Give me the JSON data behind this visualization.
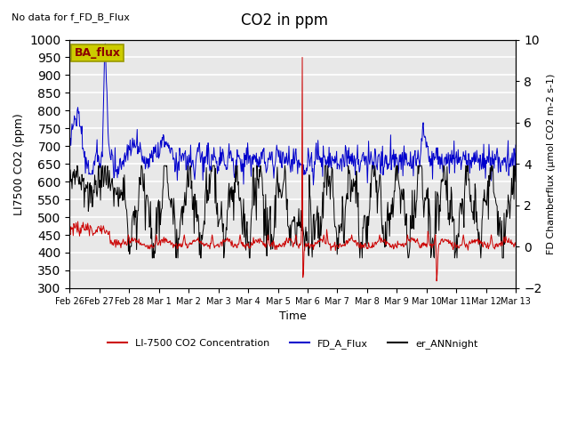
{
  "title": "CO2 in ppm",
  "top_left_text": "No data for f_FD_B_Flux",
  "annotation_box": "BA_flux",
  "ylabel_left": "LI7500 CO2 (ppm)",
  "ylabel_right": "FD Chamberflux (μmol CO2 m-2 s-1)",
  "xlabel": "Time",
  "ylim_left": [
    300,
    1000
  ],
  "ylim_right": [
    -2,
    10
  ],
  "yticks_left": [
    300,
    350,
    400,
    450,
    500,
    550,
    600,
    650,
    700,
    750,
    800,
    850,
    900,
    950,
    1000
  ],
  "yticks_right": [
    -2,
    0,
    2,
    4,
    6,
    8,
    10
  ],
  "xtick_labels": [
    "Feb 26",
    "Feb 27",
    "Feb 28",
    "Mar 1",
    "Mar 2",
    "Mar 3",
    "Mar 4",
    "Mar 5",
    "Mar 6",
    "Mar 7",
    "Mar 8",
    "Mar 9",
    "Mar 10",
    "Mar 11",
    "Mar 12",
    "Mar 13"
  ],
  "legend_entries": [
    "LI-7500 CO2 Concentration",
    "FD_A_Flux",
    "er_ANNnight"
  ],
  "legend_colors": [
    "#cc0000",
    "#0000cc",
    "#000000"
  ],
  "line_colors": {
    "red": "#cc0000",
    "blue": "#0000cc",
    "black": "#000000"
  },
  "background_color": "#e8e8e8",
  "grid_color": "#ffffff",
  "annotation_box_color": "#cccc00",
  "annotation_text_color": "#8b0000",
  "figsize": [
    6.4,
    4.8
  ],
  "dpi": 100
}
